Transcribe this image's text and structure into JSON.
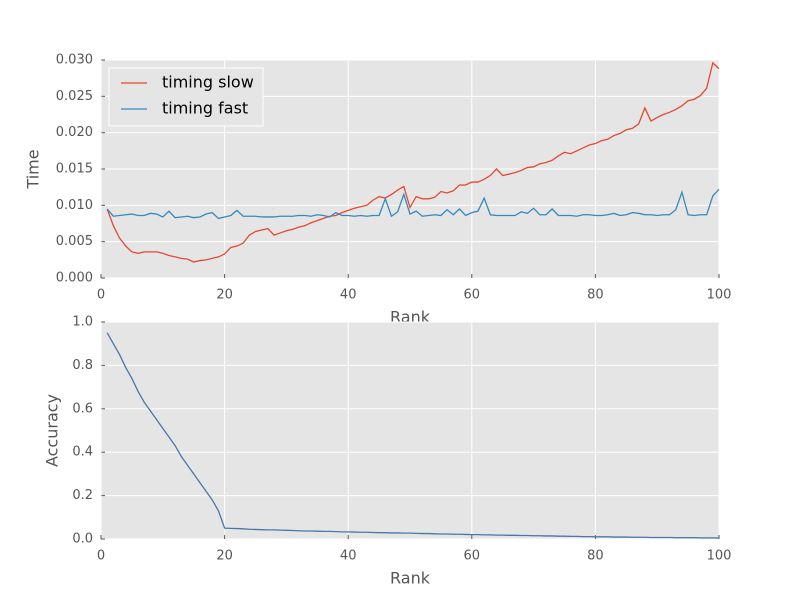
{
  "chart_data": [
    {
      "type": "line",
      "xlabel": "Rank",
      "ylabel": "Time",
      "x": [
        1,
        2,
        3,
        4,
        5,
        6,
        7,
        8,
        9,
        10,
        11,
        12,
        13,
        14,
        15,
        16,
        17,
        18,
        19,
        20,
        21,
        22,
        23,
        24,
        25,
        26,
        27,
        28,
        29,
        30,
        31,
        32,
        33,
        34,
        35,
        36,
        37,
        38,
        39,
        40,
        41,
        42,
        43,
        44,
        45,
        46,
        47,
        48,
        49,
        50,
        51,
        52,
        53,
        54,
        55,
        56,
        57,
        58,
        59,
        60,
        61,
        62,
        63,
        64,
        65,
        66,
        67,
        68,
        69,
        70,
        71,
        72,
        73,
        74,
        75,
        76,
        77,
        78,
        79,
        80,
        81,
        82,
        83,
        84,
        85,
        86,
        87,
        88,
        89,
        90,
        91,
        92,
        93,
        94,
        95,
        96,
        97,
        98,
        99,
        100
      ],
      "series": [
        {
          "name": "timing slow",
          "color": "#e24a33",
          "values": [
            0.0095,
            0.0072,
            0.0055,
            0.0044,
            0.0036,
            0.0034,
            0.0036,
            0.0036,
            0.0036,
            0.0034,
            0.0031,
            0.0029,
            0.0027,
            0.0026,
            0.0022,
            0.0024,
            0.0025,
            0.0027,
            0.0029,
            0.0033,
            0.0042,
            0.0044,
            0.0048,
            0.0059,
            0.0064,
            0.0066,
            0.0068,
            0.0059,
            0.0062,
            0.0065,
            0.0067,
            0.007,
            0.0072,
            0.0076,
            0.0079,
            0.0082,
            0.0085,
            0.0086,
            0.009,
            0.0093,
            0.0096,
            0.0098,
            0.01,
            0.0107,
            0.0112,
            0.011,
            0.0115,
            0.0121,
            0.0126,
            0.0097,
            0.0112,
            0.0109,
            0.0109,
            0.0111,
            0.0119,
            0.0117,
            0.012,
            0.0128,
            0.0128,
            0.0132,
            0.0132,
            0.0136,
            0.0141,
            0.015,
            0.0141,
            0.0143,
            0.0145,
            0.0148,
            0.0152,
            0.0153,
            0.0157,
            0.0159,
            0.0162,
            0.0168,
            0.0173,
            0.0171,
            0.0175,
            0.0179,
            0.0183,
            0.0185,
            0.0189,
            0.0191,
            0.0196,
            0.0199,
            0.0204,
            0.0206,
            0.0212,
            0.0234,
            0.0216,
            0.0221,
            0.0225,
            0.0228,
            0.0232,
            0.0237,
            0.0244,
            0.0246,
            0.0251,
            0.0261,
            0.0296,
            0.0288
          ]
        },
        {
          "name": "timing fast",
          "color": "#348abd",
          "values": [
            0.0095,
            0.0085,
            0.0086,
            0.0087,
            0.0088,
            0.0086,
            0.0086,
            0.0089,
            0.0088,
            0.0084,
            0.0092,
            0.0083,
            0.0084,
            0.0085,
            0.0083,
            0.0084,
            0.0088,
            0.009,
            0.0082,
            0.0084,
            0.0086,
            0.0093,
            0.0085,
            0.0085,
            0.0085,
            0.0084,
            0.0084,
            0.0084,
            0.0085,
            0.0085,
            0.0085,
            0.0086,
            0.0086,
            0.0085,
            0.0087,
            0.0086,
            0.0084,
            0.009,
            0.0086,
            0.0086,
            0.0085,
            0.0086,
            0.0085,
            0.0086,
            0.0086,
            0.0109,
            0.0085,
            0.0091,
            0.0115,
            0.0088,
            0.0092,
            0.0085,
            0.0086,
            0.0087,
            0.0086,
            0.0094,
            0.0087,
            0.0095,
            0.0086,
            0.009,
            0.0092,
            0.011,
            0.0087,
            0.0086,
            0.0086,
            0.0086,
            0.0086,
            0.0091,
            0.0089,
            0.0096,
            0.0087,
            0.0087,
            0.0095,
            0.0086,
            0.0086,
            0.0086,
            0.0085,
            0.0087,
            0.0087,
            0.0086,
            0.0086,
            0.0087,
            0.0089,
            0.0086,
            0.0087,
            0.009,
            0.0089,
            0.0087,
            0.0087,
            0.0086,
            0.0087,
            0.0087,
            0.0094,
            0.0118,
            0.0087,
            0.0086,
            0.0087,
            0.0087,
            0.0113,
            0.0122
          ]
        }
      ],
      "xlim": [
        0,
        100
      ],
      "xticks": [
        0,
        20,
        40,
        60,
        80,
        100
      ],
      "ylim": [
        0,
        0.03
      ],
      "yticks": [
        {
          "value": 0,
          "label": "0.000"
        },
        {
          "value": 0.005,
          "label": "0.005"
        },
        {
          "value": 0.01,
          "label": "0.010"
        },
        {
          "value": 0.015,
          "label": "0.015"
        },
        {
          "value": 0.02,
          "label": "0.020"
        },
        {
          "value": 0.025,
          "label": "0.025"
        },
        {
          "value": 0.03,
          "label": "0.030"
        }
      ],
      "grid": true,
      "legend": "upper left"
    },
    {
      "type": "line",
      "xlabel": "Rank",
      "ylabel": "Accuracy",
      "color": "#4878a8",
      "x": [
        1,
        2,
        3,
        4,
        5,
        6,
        7,
        8,
        9,
        10,
        11,
        12,
        13,
        14,
        15,
        16,
        17,
        18,
        19,
        20,
        21,
        22,
        23,
        24,
        25,
        26,
        27,
        28,
        29,
        30,
        31,
        32,
        33,
        34,
        35,
        36,
        37,
        38,
        39,
        40,
        41,
        42,
        43,
        44,
        45,
        46,
        47,
        48,
        49,
        50,
        51,
        52,
        53,
        54,
        55,
        56,
        57,
        58,
        59,
        60,
        61,
        62,
        63,
        64,
        65,
        66,
        67,
        68,
        69,
        70,
        71,
        72,
        73,
        74,
        75,
        76,
        77,
        78,
        79,
        80,
        81,
        82,
        83,
        84,
        85,
        86,
        87,
        88,
        89,
        90,
        91,
        92,
        93,
        94,
        95,
        96,
        97,
        98,
        99,
        100
      ],
      "values": [
        0.95,
        0.9,
        0.85,
        0.79,
        0.74,
        0.68,
        0.63,
        0.59,
        0.55,
        0.51,
        0.47,
        0.43,
        0.38,
        0.34,
        0.3,
        0.26,
        0.22,
        0.18,
        0.13,
        0.05,
        0.049,
        0.048,
        0.047,
        0.045,
        0.044,
        0.043,
        0.042,
        0.042,
        0.041,
        0.04,
        0.039,
        0.038,
        0.037,
        0.037,
        0.036,
        0.035,
        0.035,
        0.034,
        0.033,
        0.033,
        0.032,
        0.031,
        0.031,
        0.03,
        0.029,
        0.029,
        0.028,
        0.028,
        0.027,
        0.027,
        0.026,
        0.025,
        0.025,
        0.024,
        0.023,
        0.023,
        0.022,
        0.022,
        0.021,
        0.02,
        0.02,
        0.019,
        0.019,
        0.018,
        0.018,
        0.017,
        0.017,
        0.016,
        0.016,
        0.015,
        0.015,
        0.014,
        0.014,
        0.013,
        0.013,
        0.012,
        0.012,
        0.011,
        0.011,
        0.01,
        0.01,
        0.01,
        0.009,
        0.009,
        0.009,
        0.008,
        0.008,
        0.008,
        0.007,
        0.007,
        0.007,
        0.007,
        0.006,
        0.006,
        0.006,
        0.006,
        0.005,
        0.005,
        0.005,
        0.005
      ],
      "xlim": [
        0,
        100
      ],
      "xticks": [
        0,
        20,
        40,
        60,
        80,
        100
      ],
      "ylim": [
        0,
        1
      ],
      "yticks": [
        {
          "value": 0,
          "label": "0.0"
        },
        {
          "value": 0.2,
          "label": "0.2"
        },
        {
          "value": 0.4,
          "label": "0.4"
        },
        {
          "value": 0.6,
          "label": "0.6"
        },
        {
          "value": 0.8,
          "label": "0.8"
        },
        {
          "value": 1,
          "label": "1.0"
        }
      ],
      "grid": true
    }
  ]
}
